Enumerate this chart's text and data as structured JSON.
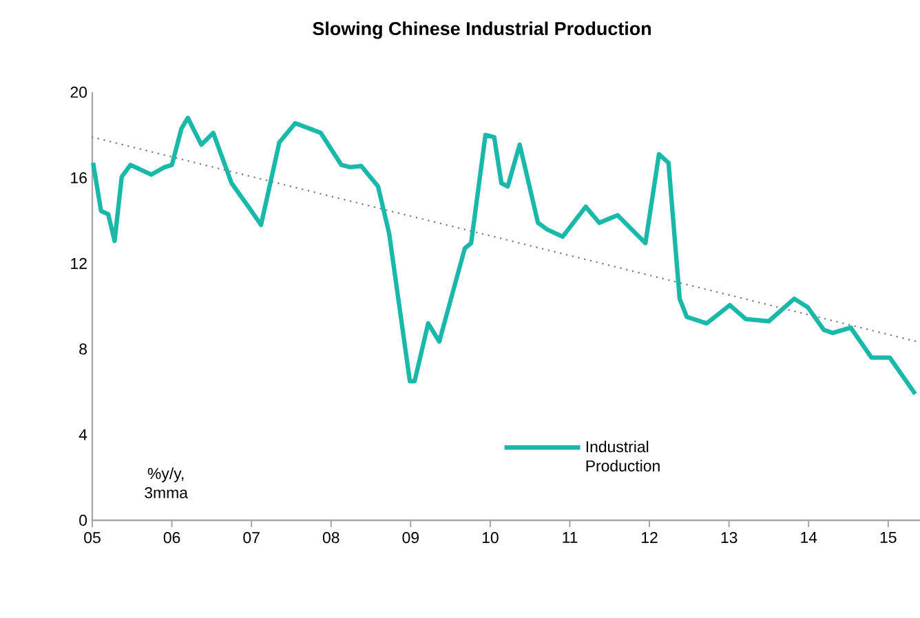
{
  "chart_data": {
    "type": "line",
    "title": "Slowing Chinese Industrial Production",
    "ylabel": "%y/y, 3mma",
    "xlim": [
      2005,
      2015.4
    ],
    "ylim": [
      0,
      20
    ],
    "xticks": [
      {
        "value": 2005,
        "label": "05"
      },
      {
        "value": 2006,
        "label": "06"
      },
      {
        "value": 2007,
        "label": "07"
      },
      {
        "value": 2008,
        "label": "08"
      },
      {
        "value": 2009,
        "label": "09"
      },
      {
        "value": 2010,
        "label": "10"
      },
      {
        "value": 2011,
        "label": "11"
      },
      {
        "value": 2012,
        "label": "12"
      },
      {
        "value": 2013,
        "label": "13"
      },
      {
        "value": 2014,
        "label": "14"
      },
      {
        "value": 2015,
        "label": "15"
      }
    ],
    "yticks": [
      0,
      4,
      8,
      12,
      16,
      20
    ],
    "legend": "bottom right",
    "series": [
      {
        "name": "Industrial Production",
        "color": "#1ab8a8",
        "line_style": "solid",
        "x": [
          2005.01,
          2005.11,
          2005.2,
          2005.28,
          2005.37,
          2005.48,
          2005.74,
          2005.91,
          2006.0,
          2006.12,
          2006.2,
          2006.37,
          2006.52,
          2006.75,
          2006.98,
          2007.12,
          2007.35,
          2007.55,
          2007.87,
          2008.13,
          2008.24,
          2008.38,
          2008.59,
          2008.73,
          2008.99,
          2009.05,
          2009.22,
          2009.36,
          2009.68,
          2009.76,
          2009.94,
          2010.05,
          2010.14,
          2010.22,
          2010.37,
          2010.6,
          2010.71,
          2010.91,
          2011.2,
          2011.37,
          2011.6,
          2011.95,
          2012.12,
          2012.24,
          2012.38,
          2012.47,
          2012.72,
          2013.01,
          2013.21,
          2013.5,
          2013.82,
          2013.99,
          2014.19,
          2014.3,
          2014.53,
          2014.79,
          2015.02,
          2015.34
        ],
        "values": [
          16.7,
          14.45,
          14.3,
          13.05,
          16.05,
          16.6,
          16.15,
          16.5,
          16.6,
          18.3,
          18.8,
          17.55,
          18.1,
          15.75,
          14.55,
          13.8,
          17.65,
          18.55,
          18.1,
          16.6,
          16.5,
          16.55,
          15.6,
          13.4,
          6.5,
          6.5,
          9.2,
          8.35,
          12.7,
          12.95,
          18.0,
          17.9,
          15.75,
          15.6,
          17.55,
          13.9,
          13.6,
          13.25,
          14.65,
          13.9,
          14.25,
          12.95,
          17.1,
          16.7,
          10.35,
          9.5,
          9.2,
          10.05,
          9.4,
          9.3,
          10.35,
          9.95,
          8.9,
          8.75,
          9.0,
          7.6,
          7.6,
          5.9
        ]
      },
      {
        "type": "line",
        "color": "#808080",
        "line_style": "dotted",
        "x": [
          2005.0,
          2015.36
        ],
        "values": [
          17.9,
          8.35
        ]
      }
    ]
  }
}
